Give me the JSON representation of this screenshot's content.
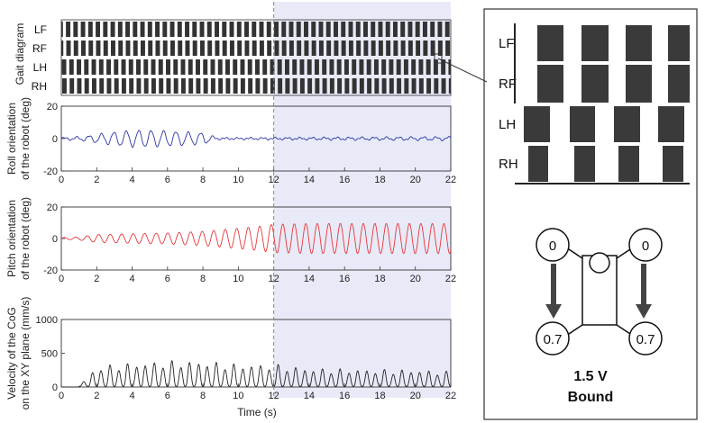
{
  "chart_data": [
    {
      "type": "gait",
      "ylabel": "Gait diagram",
      "legs": [
        "LF",
        "RF",
        "LH",
        "RH"
      ],
      "xlim": [
        0,
        22
      ],
      "highlight_from": 12,
      "phase_offsets": {
        "LF": 0.0,
        "RF": 0.05,
        "LH": 0.45,
        "RH": 0.5
      },
      "step_period": 0.42,
      "duty": 0.6
    },
    {
      "type": "line",
      "ylabel_lines": [
        "Roll orientation",
        "of the robot (deg)"
      ],
      "color": "#2b35a6",
      "xlim": [
        0,
        22
      ],
      "ylim": [
        -20,
        20
      ],
      "yticks": [
        "-20",
        "0",
        "20"
      ],
      "xticks": [
        "0",
        "2",
        "4",
        "6",
        "8",
        "10",
        "12",
        "14",
        "16",
        "18",
        "20",
        "22"
      ],
      "x": [
        0,
        1.2,
        2,
        3,
        4,
        5,
        6,
        7,
        8,
        8.8,
        10,
        12,
        14,
        16,
        18,
        20,
        22
      ],
      "amplitude": [
        0.5,
        1.2,
        2.5,
        4.0,
        5.0,
        5.0,
        4.5,
        4.0,
        3.5,
        0.5,
        0.4,
        0.5,
        0.6,
        0.7,
        0.8,
        0.9,
        1.0
      ],
      "period": 0.7
    },
    {
      "type": "line",
      "ylabel_lines": [
        "Pitch orientation",
        "of the robot (deg)"
      ],
      "color": "#e8363a",
      "xlim": [
        0,
        22
      ],
      "ylim": [
        -20,
        20
      ],
      "yticks": [
        "-20",
        "0",
        "20"
      ],
      "xticks": [
        "0",
        "2",
        "4",
        "6",
        "8",
        "10",
        "12",
        "14",
        "16",
        "18",
        "20",
        "22"
      ],
      "x": [
        0,
        1,
        2,
        4,
        6,
        8,
        9,
        10,
        11,
        12,
        14,
        16,
        18,
        20,
        22
      ],
      "amplitude": [
        0.5,
        1.0,
        2.5,
        3.0,
        3.5,
        4.5,
        5.5,
        6.5,
        7.5,
        9.0,
        9.5,
        9.5,
        9.5,
        9.5,
        9.5
      ],
      "period": 0.65
    },
    {
      "type": "line",
      "ylabel_lines": [
        "Velocity of the CoG",
        "on the XY plane (mm/s)"
      ],
      "color": "#222222",
      "xlim": [
        0,
        22
      ],
      "ylim": [
        0,
        1000
      ],
      "yticks": [
        "0",
        "500",
        "1000"
      ],
      "xticks": [
        "0",
        "2",
        "4",
        "6",
        "8",
        "10",
        "12",
        "14",
        "16",
        "18",
        "20",
        "22"
      ],
      "xlabel": "Time (s)",
      "x": [
        0,
        1,
        1.5,
        2,
        4,
        6,
        8,
        10,
        12,
        14,
        16,
        18,
        20,
        22
      ],
      "peaks": [
        0,
        0,
        150,
        300,
        350,
        380,
        380,
        330,
        330,
        270,
        260,
        250,
        250,
        220
      ],
      "period": 0.5
    }
  ],
  "inset": {
    "legs": [
      "LF",
      "RF",
      "LH",
      "RH"
    ],
    "nodes": {
      "left_top": "0",
      "right_top": "0",
      "left_bottom": "0.7",
      "right_bottom": "0.7"
    },
    "caption_line1": "1.5 V",
    "caption_line2": "Bound"
  }
}
